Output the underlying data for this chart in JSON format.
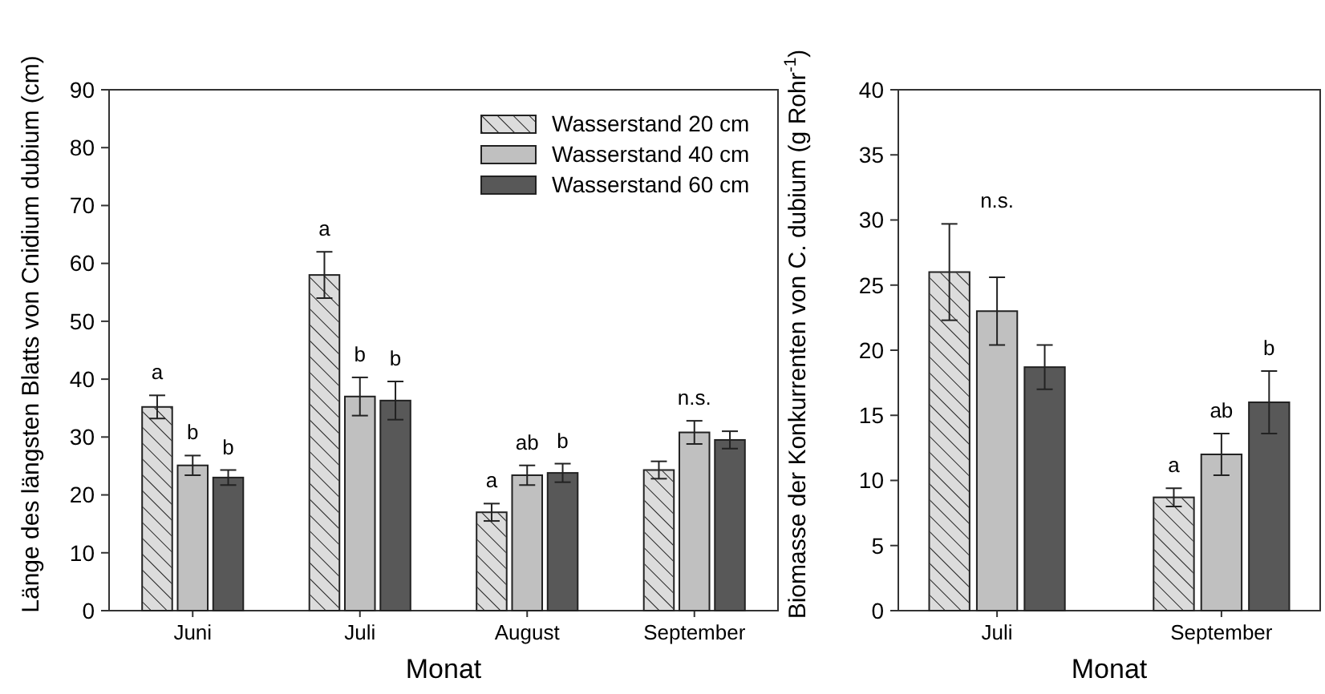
{
  "chart_data": [
    {
      "type": "bar",
      "xlabel": "Monat",
      "ylabel": "Länge des längsten Blatts von Cnidium dubium (cm)",
      "categories": [
        "Juni",
        "Juli",
        "August",
        "September"
      ],
      "ylim": [
        0,
        90
      ],
      "yticks": [
        0,
        10,
        20,
        30,
        40,
        50,
        60,
        70,
        80,
        90
      ],
      "grid": false,
      "legend": "top right",
      "series": [
        {
          "name": "Wasserstand 20 cm",
          "color": "#dcdcdc",
          "values": [
            35.2,
            58,
            17,
            24.3
          ],
          "errors": [
            2,
            4,
            1.5,
            1.5
          ]
        },
        {
          "name": "Wasserstand 40 cm",
          "color": "#c0c0c0",
          "values": [
            25.1,
            37,
            23.4,
            30.8
          ],
          "errors": [
            1.7,
            3.3,
            1.7,
            2
          ]
        },
        {
          "name": "Wasserstand 60 cm",
          "color": "#585858",
          "values": [
            23,
            36.3,
            23.8,
            29.5
          ],
          "errors": [
            1.3,
            3.3,
            1.6,
            1.5
          ]
        }
      ],
      "annotations": [
        "a",
        "b",
        "b",
        "a",
        "b",
        "b",
        "a",
        "ab",
        "b",
        "n.s."
      ]
    },
    {
      "type": "bar",
      "xlabel": "Monat",
      "ylabel": "Biomasse der Konkurrenten von C. dubium (g Rohr$^{-1}$)",
      "categories": [
        "Juli",
        "September"
      ],
      "ylim": [
        0,
        40
      ],
      "yticks": [
        0,
        5,
        10,
        15,
        20,
        25,
        30,
        35,
        40
      ],
      "grid": false,
      "series": [
        {
          "color": "#dcdcdc",
          "values": [
            26,
            8.7
          ],
          "errors": [
            3.7,
            0.7
          ]
        },
        {
          "color": "#c0c0c0",
          "values": [
            23,
            12
          ],
          "errors": [
            2.6,
            1.6
          ]
        },
        {
          "color": "#585858",
          "values": [
            18.7,
            16
          ],
          "errors": [
            1.7,
            2.4
          ]
        }
      ],
      "annotations": [
        "n.s.",
        "a",
        "ab",
        "b"
      ]
    }
  ]
}
